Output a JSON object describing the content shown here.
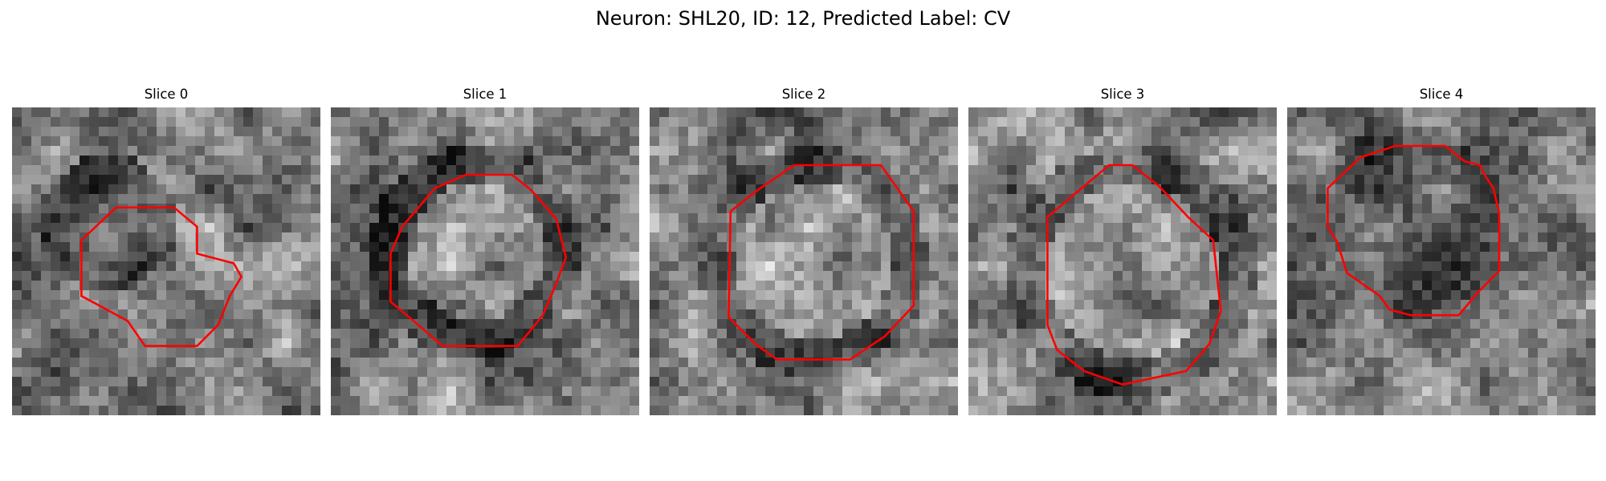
{
  "figure": {
    "title": "Neuron: SHL20, ID: 12, Predicted Label: CV"
  },
  "panels": [
    {
      "label": "Slice 0",
      "contour_color": "#ff0000",
      "colormap": "gray"
    },
    {
      "label": "Slice 1",
      "contour_color": "#ff0000",
      "colormap": "gray"
    },
    {
      "label": "Slice 2",
      "contour_color": "#ff0000",
      "colormap": "gray"
    },
    {
      "label": "Slice 3",
      "contour_color": "#ff0000",
      "colormap": "gray"
    },
    {
      "label": "Slice 4",
      "contour_color": "#ff0000",
      "colormap": "gray"
    }
  ]
}
